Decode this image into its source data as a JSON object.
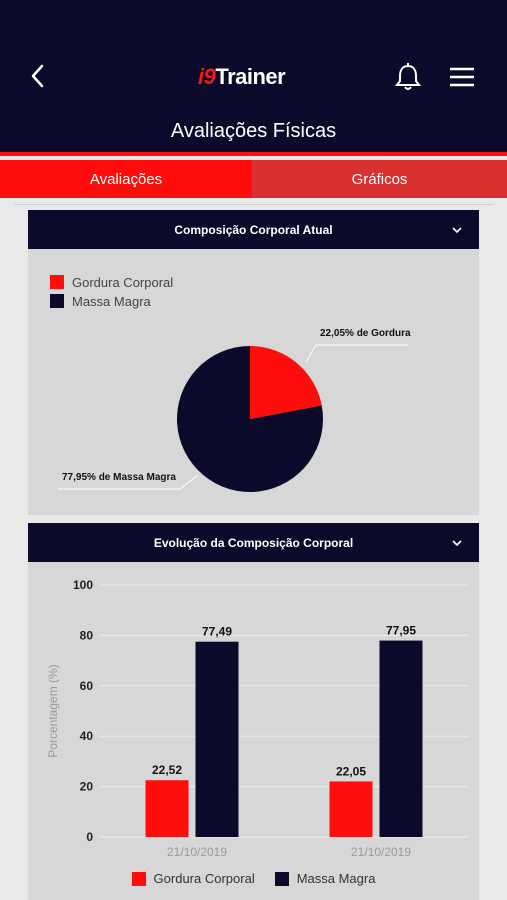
{
  "header": {
    "logo_prefix": "i9",
    "logo_suffix": "Trainer",
    "page_title": "Avaliações Físicas"
  },
  "tabs": [
    {
      "label": "Avaliações",
      "active": true
    },
    {
      "label": "Gráficos",
      "active": false
    }
  ],
  "colors": {
    "navy": "#0c0a2b",
    "red": "#ff0d0d",
    "card_bg": "#d7d7d7"
  },
  "icons": {
    "back": "back-arrow-icon",
    "bell": "bell-icon",
    "menu": "hamburger-menu-icon",
    "chevron": "chevron-down-icon"
  },
  "card1": {
    "title": "Composição Corporal Atual",
    "legend": [
      "Gordura Corporal",
      "Massa Magra"
    ]
  },
  "card2": {
    "title": "Evolução da Composição Corporal",
    "legend": [
      "Gordura Corporal",
      "Massa Magra"
    ]
  },
  "chart_data": [
    {
      "type": "pie",
      "labels": [
        "Gordura Corporal",
        "Massa Magra"
      ],
      "values": [
        22.05,
        77.95
      ],
      "colors": [
        "#ff0d0d",
        "#0c0a2b"
      ],
      "data_labels": [
        "22,05% de Gordura",
        "77,95% de Massa Magra"
      ],
      "legend": "top-left"
    },
    {
      "type": "bar",
      "categories": [
        "21/10/2019",
        "21/10/2019"
      ],
      "series": [
        {
          "name": "Gordura Corporal",
          "values": [
            22.52,
            22.05
          ],
          "labels": [
            "22,52",
            "22,05"
          ],
          "color": "#ff0d0d"
        },
        {
          "name": "Massa Magra",
          "values": [
            77.49,
            77.95
          ],
          "labels": [
            "77,49",
            "77,95"
          ],
          "color": "#0c0a2b"
        }
      ],
      "ylabel": "Porcentagem (%)",
      "ylim": [
        0,
        100
      ],
      "yticks": [
        0,
        20,
        40,
        60,
        80,
        100
      ],
      "grid": true,
      "legend": "bottom"
    }
  ]
}
